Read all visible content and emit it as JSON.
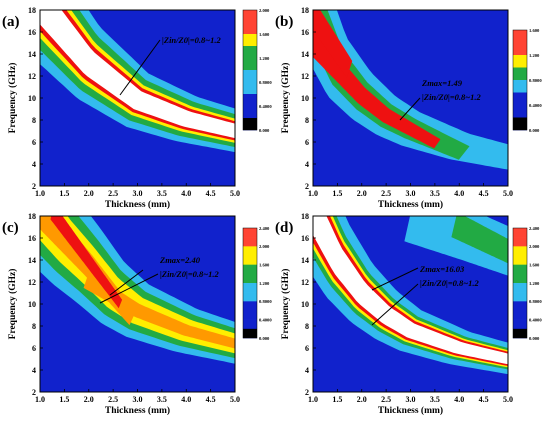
{
  "figure": {
    "panels": [
      "a",
      "b",
      "c",
      "d"
    ]
  },
  "chart_data": [
    {
      "type": "heatmap",
      "panel_label": "(a)",
      "xlabel": "Thickness (mm)",
      "ylabel": "Frequency (GHz)",
      "xlim": [
        1.0,
        5.0
      ],
      "ylim": [
        2,
        18
      ],
      "xticks": [
        "1.0",
        "1.5",
        "2.0",
        "2.5",
        "3.0",
        "3.5",
        "4.0",
        "4.5",
        "5.0"
      ],
      "yticks": [
        "2",
        "4",
        "6",
        "8",
        "10",
        "12",
        "14",
        "16",
        "18"
      ],
      "colorbar_ticks": [
        "2.000",
        "1.600",
        "1.200",
        "0.8000",
        "0.4000",
        "0.000"
      ],
      "colorbar_values": [
        2.0,
        1.6,
        1.2,
        0.8,
        0.4,
        0.0
      ],
      "annotations": [
        "|Zin/Z0|=0.8~1.2"
      ],
      "grid": false,
      "contour_bands": [
        {
          "level": "0.4-0.8",
          "color": "#33bbee",
          "ridge": [
            [
              1.0,
              18.6
            ],
            [
              2.0,
              13.2
            ],
            [
              3.0,
              9.8
            ],
            [
              4.0,
              8.1
            ],
            [
              5.0,
              7.0
            ]
          ],
          "half_width": 0.45
        },
        {
          "level": "0.8-1.2",
          "color": "#22aa44",
          "ridge": [
            [
              1.0,
              18.6
            ],
            [
              2.0,
              13.2
            ],
            [
              3.0,
              9.8
            ],
            [
              4.0,
              8.1
            ],
            [
              5.0,
              7.0
            ]
          ],
          "half_width": 0.34
        },
        {
          "level": "1.2-1.6",
          "color": "#ffee00",
          "ridge": [
            [
              1.0,
              18.6
            ],
            [
              2.0,
              13.2
            ],
            [
              3.0,
              9.8
            ],
            [
              4.0,
              8.1
            ],
            [
              5.0,
              7.0
            ]
          ],
          "half_width": 0.25
        },
        {
          "level": "1.6-2.0",
          "color": "#ee1111",
          "ridge": [
            [
              1.0,
              18.6
            ],
            [
              2.0,
              13.2
            ],
            [
              3.0,
              9.8
            ],
            [
              4.0,
              8.1
            ],
            [
              5.0,
              7.0
            ]
          ],
          "half_width": 0.2
        },
        {
          "level": ">2.0",
          "color": "#ffffff",
          "ridge": [
            [
              1.0,
              18.6
            ],
            [
              2.0,
              13.2
            ],
            [
              3.0,
              9.8
            ],
            [
              4.0,
              8.1
            ],
            [
              5.0,
              7.0
            ]
          ],
          "half_width": 0.15
        }
      ]
    },
    {
      "type": "heatmap",
      "panel_label": "(b)",
      "xlabel": "Thickness (mm)",
      "ylabel": "Frequency (GHz)",
      "xlim": [
        1.0,
        5.0
      ],
      "ylim": [
        2,
        18
      ],
      "xticks": [
        "1.0",
        "1.5",
        "2.0",
        "2.5",
        "3.0",
        "3.5",
        "4.0",
        "4.5",
        "5.0"
      ],
      "yticks": [
        "2",
        "4",
        "6",
        "8",
        "10",
        "12",
        "14",
        "16",
        "18"
      ],
      "colorbar_ticks": [
        "1.600",
        "1.200",
        "0.8000",
        "0.4000",
        "0.000"
      ],
      "colorbar_values": [
        1.6,
        1.2,
        0.8,
        0.4,
        0.0
      ],
      "annotations": [
        "Zmax=1.49",
        "|Zin/Z0|=0.8~1.2"
      ],
      "grid": false,
      "contour_bands": [
        {
          "level": "0.4-0.8",
          "color": "#33bbee",
          "ridge": [
            [
              1.0,
              18.0
            ],
            [
              1.5,
              12.8
            ],
            [
              2.0,
              10.2
            ],
            [
              2.5,
              8.4
            ],
            [
              3.0,
              7.2
            ],
            [
              4.0,
              5.6
            ],
            [
              5.0,
              4.6
            ]
          ],
          "half_width": 0.38
        },
        {
          "level": "0.8-1.2",
          "color": "#22aa44",
          "ridge": [
            [
              1.0,
              18.0
            ],
            [
              1.5,
              12.8
            ],
            [
              2.0,
              10.2
            ],
            [
              2.5,
              8.4
            ],
            [
              3.0,
              7.2
            ],
            [
              3.5,
              6.2
            ]
          ],
          "half_width": 0.22
        },
        {
          "level": "1.2-1.6",
          "color": "#ee1111",
          "ridge": [
            [
              1.55,
              12.4
            ],
            [
              2.0,
              10.2
            ],
            [
              2.5,
              8.4
            ],
            [
              2.95,
              7.3
            ]
          ],
          "half_width": 0.13
        },
        {
          "level": "1.2-1.6",
          "color": "#ee1111",
          "ridge": [
            [
              1.0,
              17.6
            ],
            [
              1.15,
              16.6
            ]
          ],
          "half_width": 0.11
        }
      ]
    },
    {
      "type": "heatmap",
      "panel_label": "(c)",
      "xlabel": "Thickness (mm)",
      "ylabel": "Frequency (GHz)",
      "xlim": [
        1.0,
        5.0
      ],
      "ylim": [
        2,
        18
      ],
      "xticks": [
        "1.0",
        "1.5",
        "2.0",
        "2.5",
        "3.0",
        "3.5",
        "4.0",
        "4.5",
        "5.0"
      ],
      "yticks": [
        "2",
        "4",
        "6",
        "8",
        "10",
        "12",
        "14",
        "16",
        "18"
      ],
      "colorbar_ticks": [
        "2.400",
        "2.000",
        "1.600",
        "1.200",
        "0.8000",
        "0.4000",
        "0.000"
      ],
      "colorbar_values": [
        2.4,
        2.0,
        1.6,
        1.2,
        0.8,
        0.4,
        0.0
      ],
      "annotations": [
        "Zmax=2.40",
        "|Zin/Z0|=0.8~1.2"
      ],
      "grid": false,
      "contour_bands": [
        {
          "level": "0.4-0.8",
          "color": "#33bbee",
          "ridge": [
            [
              1.0,
              18.6
            ],
            [
              1.5,
              15.8
            ],
            [
              2.0,
              13.5
            ],
            [
              2.5,
              11.0
            ],
            [
              3.0,
              9.4
            ],
            [
              4.0,
              7.6
            ],
            [
              5.0,
              6.4
            ]
          ],
          "half_width": 0.46
        },
        {
          "level": "0.8-1.2",
          "color": "#22aa44",
          "ridge": [
            [
              1.0,
              18.6
            ],
            [
              1.5,
              15.8
            ],
            [
              2.0,
              13.5
            ],
            [
              2.5,
              11.0
            ],
            [
              3.0,
              9.4
            ],
            [
              4.0,
              7.6
            ],
            [
              5.0,
              6.4
            ]
          ],
          "half_width": 0.33
        },
        {
          "level": "1.2-1.6",
          "color": "#ffee00",
          "ridge": [
            [
              1.0,
              18.6
            ],
            [
              1.5,
              15.8
            ],
            [
              2.0,
              13.5
            ],
            [
              2.5,
              11.0
            ],
            [
              3.0,
              9.4
            ],
            [
              4.0,
              7.6
            ],
            [
              5.0,
              6.4
            ]
          ],
          "half_width": 0.22
        },
        {
          "level": "1.6-2.0",
          "color": "#ff9900",
          "ridge": [
            [
              1.45,
              16.2
            ],
            [
              2.0,
              13.5
            ],
            [
              2.3,
              11.9
            ]
          ],
          "half_width": 0.13
        },
        {
          "level": "1.6-2.0",
          "color": "#ff9900",
          "ridge": [
            [
              2.55,
              10.6
            ],
            [
              3.0,
              9.4
            ],
            [
              4.0,
              7.6
            ],
            [
              5.0,
              6.4
            ]
          ],
          "half_width": 0.11
        },
        {
          "level": "2.0-2.4",
          "color": "#ee1111",
          "ridge": [
            [
              1.85,
              14.8
            ],
            [
              2.05,
              13.6
            ]
          ],
          "half_width": 0.07
        }
      ]
    },
    {
      "type": "heatmap",
      "panel_label": "(d)",
      "xlabel": "Thickness (mm)",
      "ylabel": "Frequency (GHz)",
      "xlim": [
        1.0,
        5.0
      ],
      "ylim": [
        2,
        18
      ],
      "xticks": [
        "1.0",
        "1.5",
        "2.0",
        "2.5",
        "3.0",
        "3.5",
        "4.0",
        "4.5",
        "5.0"
      ],
      "yticks": [
        "2",
        "4",
        "6",
        "8",
        "10",
        "12",
        "14",
        "16",
        "18"
      ],
      "colorbar_ticks": [
        "2.400",
        "2.000",
        "1.600",
        "1.200",
        "0.8000",
        "0.4000",
        "0.000"
      ],
      "colorbar_values": [
        2.4,
        2.0,
        1.6,
        1.2,
        0.8,
        0.4,
        0.0
      ],
      "annotations": [
        "Zmax=16.03",
        "|Zin/Z0|=0.8~1.2"
      ],
      "grid": false,
      "contour_bands": [
        {
          "level": "0.4-0.8",
          "color": "#33bbee",
          "ridge": [
            [
              1.0,
              18.4
            ],
            [
              1.5,
              14.0
            ],
            [
              2.0,
              11.0
            ],
            [
              2.5,
              9.0
            ],
            [
              3.0,
              7.6
            ],
            [
              4.0,
              6.0
            ],
            [
              5.0,
              5.0
            ]
          ],
          "half_width": 0.44
        },
        {
          "level": "0.8-1.2",
          "color": "#22aa44",
          "ridge": [
            [
              1.0,
              18.4
            ],
            [
              1.5,
              14.0
            ],
            [
              2.0,
              11.0
            ],
            [
              2.5,
              9.0
            ],
            [
              3.0,
              7.6
            ],
            [
              4.0,
              6.0
            ],
            [
              5.0,
              5.0
            ]
          ],
          "half_width": 0.3
        },
        {
          "level": "1.2-1.6",
          "color": "#ffee00",
          "ridge": [
            [
              1.0,
              18.4
            ],
            [
              1.5,
              14.0
            ],
            [
              2.0,
              11.0
            ],
            [
              2.5,
              9.0
            ],
            [
              3.0,
              7.6
            ],
            [
              4.0,
              6.0
            ],
            [
              5.0,
              5.0
            ]
          ],
          "half_width": 0.24
        },
        {
          "level": "1.6-2.0",
          "color": "#ee1111",
          "ridge": [
            [
              1.0,
              18.4
            ],
            [
              1.5,
              14.0
            ],
            [
              2.0,
              11.0
            ],
            [
              2.5,
              9.0
            ],
            [
              3.0,
              7.6
            ],
            [
              4.0,
              6.0
            ],
            [
              5.0,
              5.0
            ]
          ],
          "half_width": 0.2
        },
        {
          "level": ">2.4",
          "color": "#ffffff",
          "ridge": [
            [
              1.0,
              18.4
            ],
            [
              1.5,
              14.0
            ],
            [
              2.0,
              11.0
            ],
            [
              2.5,
              9.0
            ],
            [
              3.0,
              7.6
            ],
            [
              4.0,
              6.0
            ],
            [
              5.0,
              5.0
            ]
          ],
          "half_width": 0.15
        },
        {
          "level": "0.4-0.8",
          "color": "#33bbee",
          "ridge": [
            [
              3.6,
              17.2
            ],
            [
              4.2,
              16.2
            ],
            [
              5.0,
              14.8
            ]
          ],
          "half_width": 0.25
        },
        {
          "level": "0.8-1.2",
          "color": "#22aa44",
          "ridge": [
            [
              4.5,
              15.9
            ],
            [
              5.0,
              14.8
            ]
          ],
          "half_width": 0.12
        }
      ]
    }
  ],
  "colors": {
    "background_level": "#1122cc",
    "colorbar_bottom": "#000000"
  }
}
